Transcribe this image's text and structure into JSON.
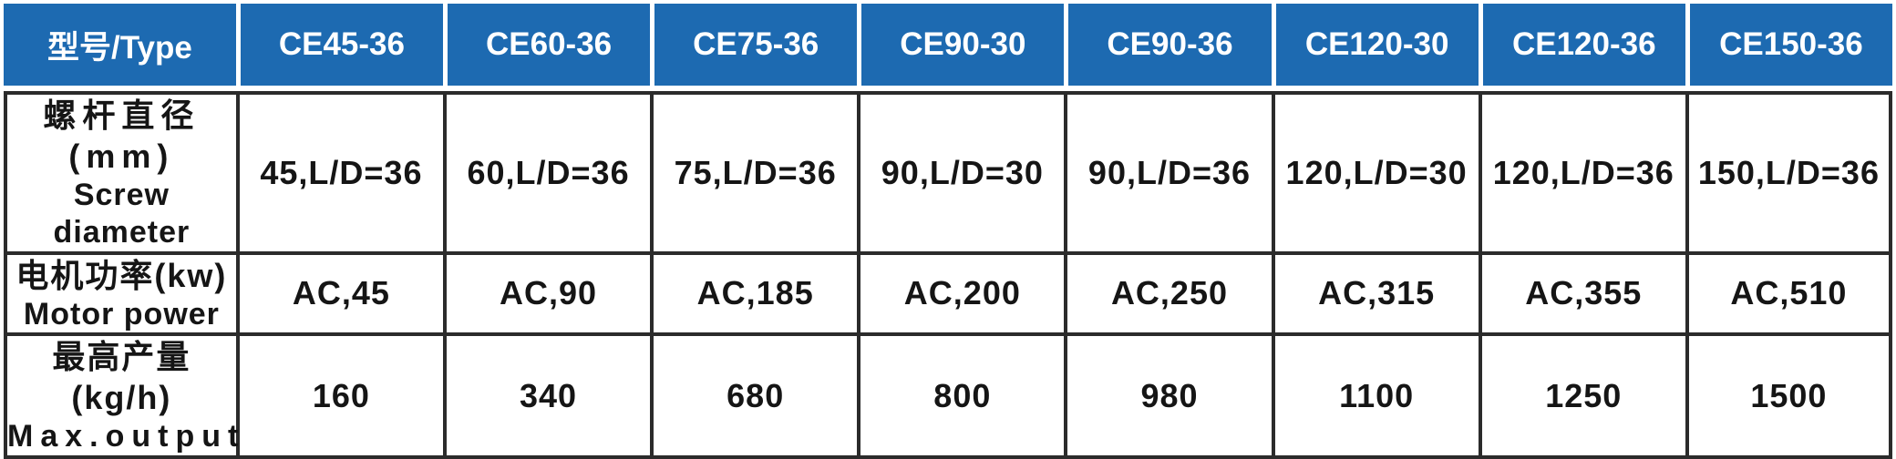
{
  "colors": {
    "accent": "#1d6ab1",
    "line": "#2b2b2b",
    "header_text": "#ffffff",
    "body_text": "#151515"
  },
  "table": {
    "corner_header": "型号/Type",
    "columns": [
      "CE45-36",
      "CE60-36",
      "CE75-36",
      "CE90-30",
      "CE90-36",
      "CE120-30",
      "CE120-36",
      "CE150-36"
    ],
    "rows": [
      {
        "label_zh": "螺杆直径(mm)",
        "label_en": "Screw diameter",
        "values": [
          "45,L/D=36",
          "60,L/D=36",
          "75,L/D=36",
          "90,L/D=30",
          "90,L/D=36",
          "120,L/D=30",
          "120,L/D=36",
          "150,L/D=36"
        ]
      },
      {
        "label_zh": "电机功率(kw)",
        "label_en": "Motor power",
        "values": [
          "AC,45",
          "AC,90",
          "AC,185",
          "AC,200",
          "AC,250",
          "AC,315",
          "AC,355",
          "AC,510"
        ]
      },
      {
        "label_zh": "最高产量(kg/h)",
        "label_en": "Max.output",
        "values": [
          "160",
          "340",
          "680",
          "800",
          "980",
          "1100",
          "1250",
          "1500"
        ]
      }
    ]
  },
  "chart_data": {
    "type": "table",
    "columns": [
      "型号/Type",
      "CE45-36",
      "CE60-36",
      "CE75-36",
      "CE90-30",
      "CE90-36",
      "CE120-30",
      "CE120-36",
      "CE150-36"
    ],
    "rows": [
      [
        "螺杆直径(mm) Screw diameter",
        "45,L/D=36",
        "60,L/D=36",
        "75,L/D=36",
        "90,L/D=30",
        "90,L/D=36",
        "120,L/D=30",
        "120,L/D=36",
        "150,L/D=36"
      ],
      [
        "电机功率(kw) Motor power",
        "AC,45",
        "AC,90",
        "AC,185",
        "AC,200",
        "AC,250",
        "AC,315",
        "AC,355",
        "AC,510"
      ],
      [
        "最高产量(kg/h) Max.output",
        "160",
        "340",
        "680",
        "800",
        "980",
        "1100",
        "1250",
        "1500"
      ]
    ]
  }
}
